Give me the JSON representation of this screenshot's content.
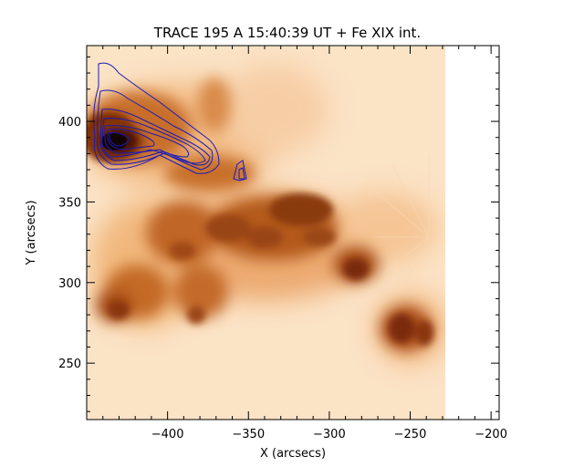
{
  "figure": {
    "title": "TRACE 195 A 15:40:39 UT + Fe XIX int.",
    "xlabel": "X (arcsecs)",
    "ylabel": "Y (arcsecs)",
    "xlim": [
      -450,
      -195
    ],
    "ylim": [
      215,
      447
    ],
    "image_xlim": [
      -450,
      -230
    ],
    "x_ticks": [
      -400,
      -350,
      -300,
      -250,
      -200
    ],
    "y_ticks": [
      250,
      300,
      350,
      400
    ],
    "x_tick_labels": [
      "−400",
      "−350",
      "−300",
      "−250",
      "−200"
    ],
    "y_tick_labels": [
      "250",
      "300",
      "350",
      "400"
    ],
    "colors": {
      "background_image": "#fbe3c6",
      "bright_region": "#b85a1c",
      "dark_core": "#2a0a00",
      "contour": "#1a1ab8",
      "axes": "#000000"
    }
  }
}
